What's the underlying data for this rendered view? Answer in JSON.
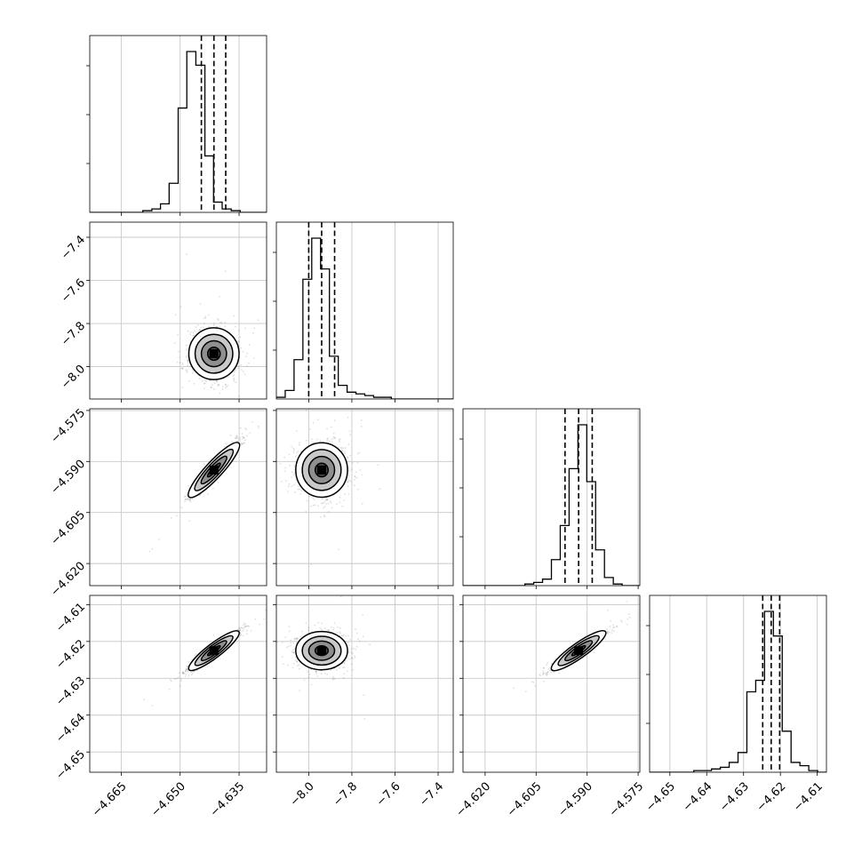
{
  "chart_data": {
    "type": "corner",
    "dimensions": 4,
    "variables": [
      {
        "name": "",
        "range": [
          -4.673,
          -4.628
        ],
        "ticks": [
          -4.665,
          -4.65,
          -4.635
        ],
        "tick_labels": [
          "−4.665",
          "−4.650",
          "−4.635"
        ],
        "quantiles": [
          -4.6446,
          -4.6414,
          -4.6384
        ],
        "median": -4.6414,
        "sigma": 0.0032,
        "corr_sign": 1,
        "hist": {
          "edges": [
            -4.673,
            -4.6707,
            -4.6685,
            -4.6662,
            -4.664,
            -4.6617,
            -4.6595,
            -4.6572,
            -4.655,
            -4.6528,
            -4.6505,
            -4.6483,
            -4.646,
            -4.6437,
            -4.6415,
            -4.6393,
            -4.637,
            -4.6347,
            -4.6325,
            -4.6303,
            -4.628
          ],
          "counts": [
            0,
            0,
            0,
            0,
            0,
            0,
            1,
            2,
            5,
            17,
            61,
            94,
            86,
            33,
            6,
            2,
            1,
            0,
            0,
            0
          ]
        }
      },
      {
        "name": "",
        "range": [
          -8.15,
          -7.33
        ],
        "ticks": [
          -8.0,
          -7.8,
          -7.6,
          -7.4
        ],
        "tick_labels": [
          "−8.0",
          "−7.8",
          "−7.6",
          "−7.4"
        ],
        "quantiles": [
          -8.0,
          -7.94,
          -7.88
        ],
        "median": -7.94,
        "sigma": 0.06,
        "corr_sign": 0,
        "hist": {
          "edges": [
            -8.15,
            -8.109,
            -8.068,
            -8.027,
            -7.986,
            -7.945,
            -7.904,
            -7.863,
            -7.822,
            -7.781,
            -7.74,
            -7.699,
            -7.658,
            -7.617,
            -7.576,
            -7.535,
            -7.494,
            -7.453,
            -7.412,
            -7.371,
            -7.33
          ],
          "counts": [
            1,
            5,
            23,
            70,
            94,
            76,
            25,
            8,
            4,
            3,
            2,
            1,
            1,
            0,
            0,
            0,
            0,
            0,
            0,
            0
          ]
        }
      },
      {
        "name": "",
        "range": [
          -4.6265,
          -4.5745
        ],
        "ticks": [
          -4.62,
          -4.605,
          -4.59,
          -4.575
        ],
        "tick_labels": [
          "−4.620",
          "−4.605",
          "−4.590",
          "−4.575"
        ],
        "quantiles": [
          -4.5965,
          -4.5925,
          -4.5885
        ],
        "median": -4.5925,
        "sigma": 0.004,
        "corr_sign": 1,
        "hist": {
          "edges": [
            -4.6265,
            -4.6239,
            -4.6213,
            -4.6187,
            -4.6161,
            -4.6135,
            -4.6109,
            -4.6083,
            -4.6057,
            -4.6031,
            -4.6005,
            -4.5979,
            -4.5953,
            -4.5927,
            -4.5901,
            -4.5875,
            -4.5849,
            -4.5823,
            -4.5797,
            -4.5771,
            -4.5745
          ],
          "counts": [
            0,
            0,
            0,
            0,
            0,
            0,
            0,
            1,
            2,
            4,
            16,
            37,
            72,
            99,
            64,
            22,
            5,
            1,
            0,
            0
          ]
        }
      },
      {
        "name": "",
        "range": [
          -4.6555,
          -4.6075
        ],
        "ticks": [
          -4.65,
          -4.64,
          -4.63,
          -4.62,
          -4.61
        ],
        "tick_labels": [
          "−4.65",
          "−4.64",
          "−4.63",
          "−4.62",
          "−4.61"
        ],
        "quantiles": [
          -4.6248,
          -4.6225,
          -4.6202
        ],
        "median": -4.6225,
        "sigma": 0.0026,
        "corr_sign": 1,
        "hist": {
          "edges": [
            -4.6555,
            -4.6531,
            -4.6507,
            -4.6483,
            -4.6459,
            -4.6435,
            -4.6411,
            -4.6387,
            -4.6363,
            -4.6339,
            -4.6315,
            -4.6291,
            -4.6267,
            -4.6243,
            -4.6219,
            -4.6195,
            -4.6171,
            -4.6147,
            -4.6123,
            -4.6099,
            -4.6075
          ],
          "counts": [
            0,
            0,
            0,
            0,
            0,
            1,
            1,
            2,
            3,
            6,
            12,
            49,
            56,
            98,
            83,
            25,
            6,
            4,
            1,
            0
          ]
        }
      }
    ],
    "grid": true,
    "legend": "none",
    "contour_levels": [
      0.5,
      1.0,
      1.5,
      2.0
    ]
  }
}
